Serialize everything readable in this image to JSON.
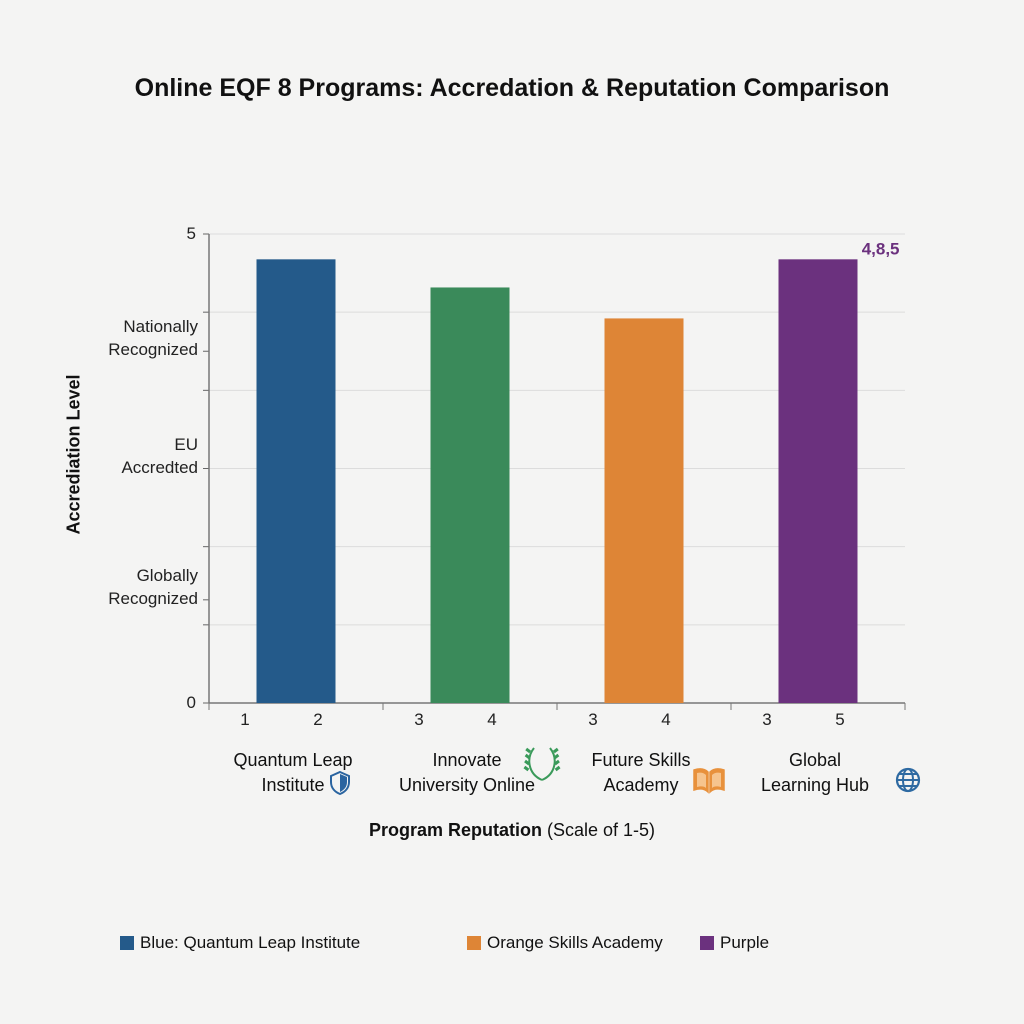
{
  "chart_data": {
    "type": "bar",
    "title": "Online EQF 8 Programs: Accredation & Reputation Comparison",
    "ylabel": "Accrediation Level",
    "xlabel_bold": "Program Reputation",
    "xlabel_rest": "(Scale of 1-5)",
    "ylim": [
      0,
      5
    ],
    "grid": true,
    "y_numeric_ticks": [
      "5",
      "0"
    ],
    "y_text_ticks": [
      {
        "label": [
          "Nationally",
          "Recognized"
        ],
        "value": 3.75
      },
      {
        "label": [
          "EU",
          "Accredted"
        ],
        "value": 2.5
      },
      {
        "label": [
          "Globally",
          "Recognized"
        ],
        "value": 1.1
      }
    ],
    "categories": [
      {
        "name": [
          "Quantum Leap",
          "Institute"
        ],
        "icon": "shield-icon",
        "ticks": [
          "1",
          "2"
        ]
      },
      {
        "name": [
          "Innovate",
          "University Online"
        ],
        "icon": "laurel-wreath-icon",
        "ticks": [
          "3",
          "4"
        ]
      },
      {
        "name": [
          "Future Skills",
          "Academy"
        ],
        "icon": "open-book-icon",
        "ticks": [
          "3",
          "4"
        ]
      },
      {
        "name": [
          "Global",
          "Learning Hub"
        ],
        "icon": "globe-icon",
        "ticks": [
          "3",
          "5"
        ]
      }
    ],
    "values": [
      4.73,
      4.43,
      4.1,
      4.73
    ],
    "colors": [
      "#245a8a",
      "#3a8a5a",
      "#de8536",
      "#6b317e"
    ],
    "data_labels": [
      "",
      "",
      "",
      "4,8,5"
    ],
    "legend_placement": "bottom",
    "legend": [
      {
        "label": "Blue: Quantum Leap Institute",
        "color": "#245a8a"
      },
      {
        "label": "Orange Skills Academy",
        "color": "#de8536"
      },
      {
        "label": "Purple",
        "color": "#6b317e"
      }
    ]
  }
}
